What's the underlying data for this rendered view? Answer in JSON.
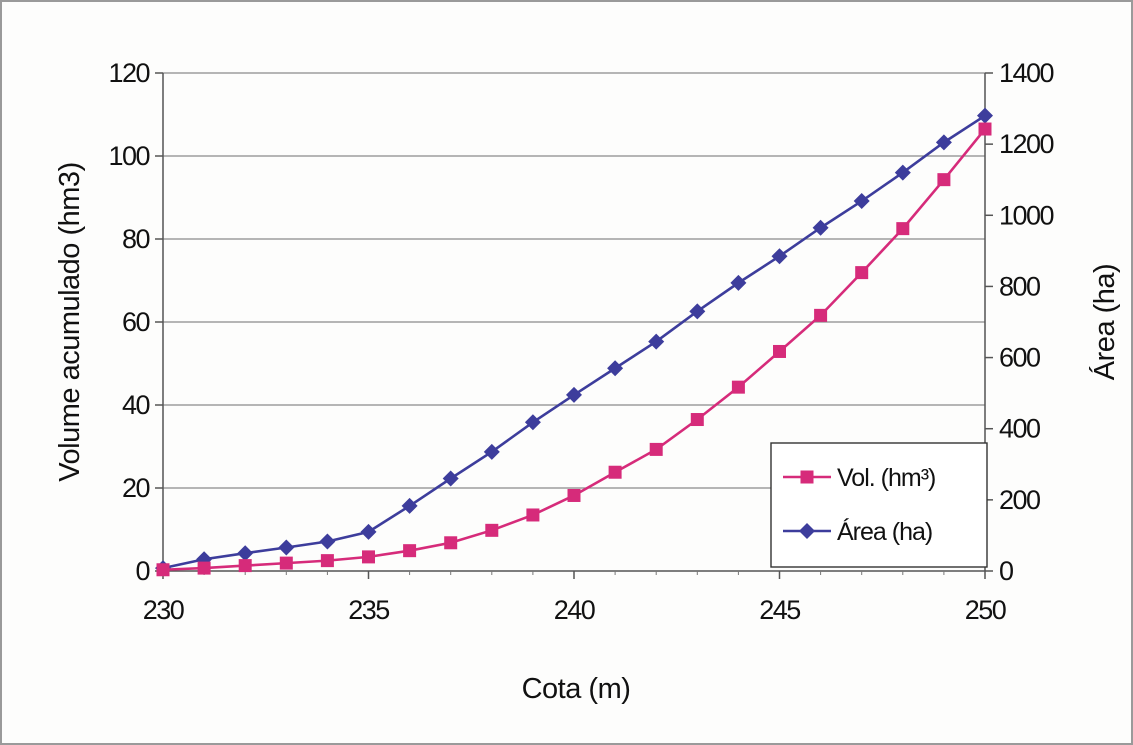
{
  "chart_data": {
    "type": "line",
    "x": [
      230,
      231,
      232,
      233,
      234,
      235,
      236,
      237,
      238,
      239,
      240,
      241,
      242,
      243,
      244,
      245,
      246,
      247,
      248,
      249,
      250
    ],
    "xlabel": "Cota (m)",
    "xlim": [
      230,
      250
    ],
    "xticks": [
      "230",
      "235",
      "240",
      "245",
      "250"
    ],
    "ylabel": "Volume acumulado (hm3)",
    "ylim": [
      0,
      120
    ],
    "yticks": [
      "0",
      "20",
      "40",
      "60",
      "80",
      "100",
      "120"
    ],
    "y2label": "Área (ha)",
    "y2lim": [
      0,
      1400
    ],
    "y2ticks": [
      "0",
      "200",
      "400",
      "600",
      "800",
      "1000",
      "1200",
      "1400"
    ],
    "grid": "horizontal",
    "legend_position": "bottom-right",
    "series": [
      {
        "name": "Vol. (hm³)",
        "axis": "left",
        "color": "#d62b7a",
        "marker": "square",
        "values": [
          0.3,
          0.7,
          1.3,
          1.9,
          2.5,
          3.4,
          4.9,
          6.8,
          9.8,
          13.5,
          18.2,
          23.8,
          29.3,
          36.5,
          44.3,
          52.9,
          61.6,
          71.9,
          82.5,
          94.3,
          106.5
        ]
      },
      {
        "name": "Área (ha)",
        "axis": "right",
        "color": "#3d3d9c",
        "marker": "diamond",
        "values": [
          8,
          33,
          50,
          66,
          83,
          110,
          183,
          260,
          335,
          418,
          495,
          570,
          645,
          730,
          810,
          885,
          965,
          1040,
          1120,
          1205,
          1280
        ]
      }
    ]
  }
}
